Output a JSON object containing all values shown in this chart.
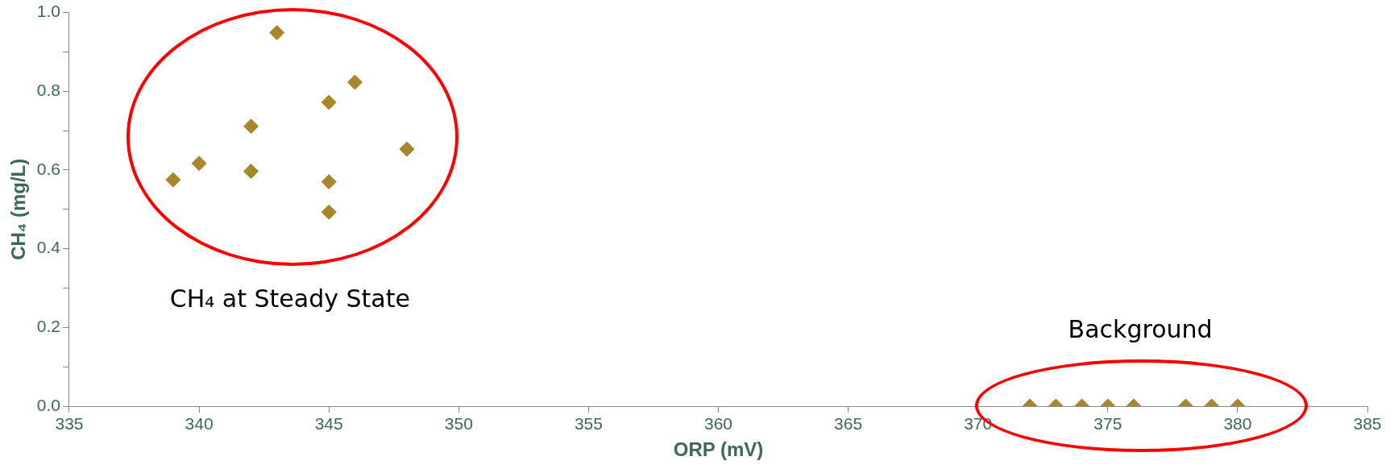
{
  "chart_data": {
    "type": "scatter",
    "xlabel": "ORP (mV)",
    "ylabel": "CH₄ (mg/L)",
    "xlim": [
      335,
      385
    ],
    "xticks": [
      335,
      340,
      345,
      350,
      355,
      360,
      365,
      370,
      375,
      380,
      385
    ],
    "ylim": [
      0,
      1
    ],
    "yticks": [
      {
        "value": 0,
        "label": "0.0"
      },
      {
        "value": 0.1,
        "label": null
      },
      0.2,
      {
        "value": 0.3,
        "label": null
      },
      0.4,
      {
        "value": 0.5,
        "label": null
      },
      0.6,
      {
        "value": 0.7,
        "label": null
      },
      0.8,
      {
        "value": 0.9,
        "label": null
      },
      {
        "value": 1,
        "label": "1.0"
      }
    ],
    "grid": false,
    "legend": false,
    "marker": "diamond",
    "series": [
      {
        "color": "#a8862a",
        "x": [
          339,
          340,
          342,
          342,
          343,
          345,
          345,
          345,
          346,
          348,
          372,
          373,
          374,
          375,
          376,
          378,
          379,
          380
        ],
        "values": [
          0.575,
          0.617,
          0.711,
          0.597,
          0.949,
          0.772,
          0.57,
          0.493,
          0.823,
          0.653,
          0,
          0,
          0,
          0,
          0,
          0,
          0,
          0
        ]
      }
    ],
    "annotations": [
      "CH₄ at Steady State",
      "Background"
    ]
  }
}
